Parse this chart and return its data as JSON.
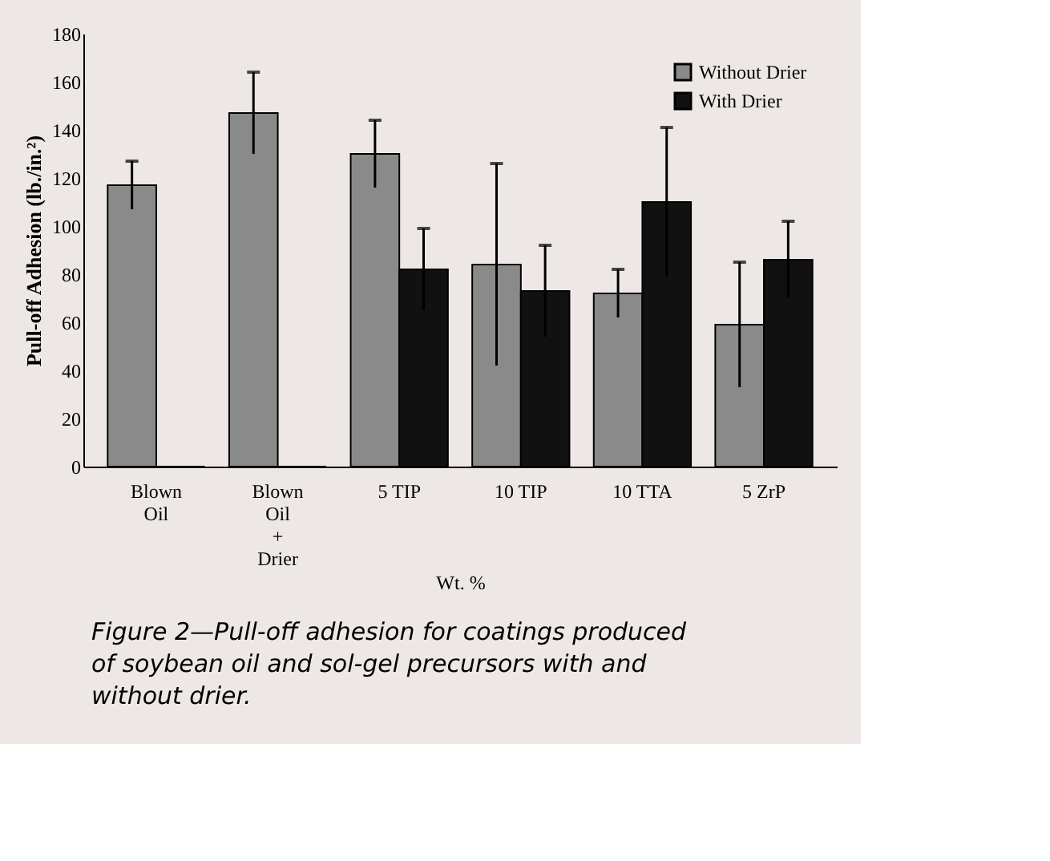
{
  "chart_data": {
    "type": "bar",
    "xlabel": "Wt. %",
    "ylabel": "Pull-off Adhesion (lb./in.²)",
    "categories": [
      "Blown Oil",
      "Blown Oil + Drier",
      "5 TIP",
      "10 TIP",
      "10 TTA",
      "5 ZrP"
    ],
    "series": [
      {
        "name": "Without Drier",
        "color": "#8a8a8a",
        "values": [
          117,
          147,
          130,
          84,
          72,
          59
        ],
        "errors": [
          10,
          17,
          14,
          42,
          10,
          26
        ]
      },
      {
        "name": "With Drier",
        "color": "#111111",
        "values": [
          0,
          0,
          82,
          73,
          110,
          86
        ],
        "errors": [
          null,
          null,
          17,
          19,
          31,
          16
        ]
      }
    ],
    "ylim": [
      0,
      180
    ],
    "yticks": [
      0,
      20,
      40,
      60,
      80,
      100,
      120,
      140,
      160,
      180
    ],
    "grid": false,
    "legend": "top right",
    "annotations": [
      "Figure 2—Pull-off adhesion for coatings produced of soybean oil and sol-gel precursors with and without drier."
    ]
  }
}
